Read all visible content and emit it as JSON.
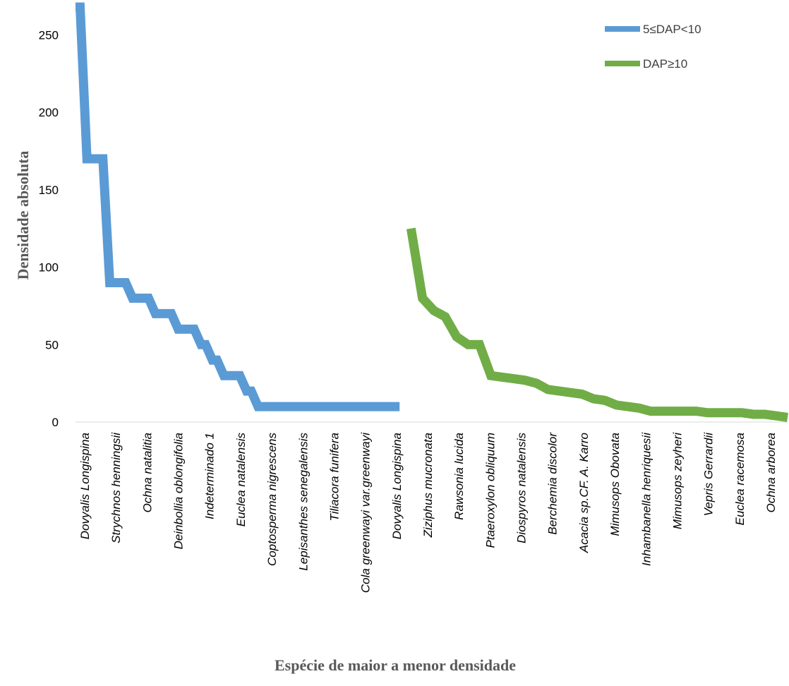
{
  "chart_data": {
    "type": "line",
    "xlabel": "Espécie de maior a menor densidade",
    "ylabel": "Densidade absoluta",
    "ylim": [
      0,
      268
    ],
    "yticks": [
      0,
      50,
      100,
      150,
      200,
      250
    ],
    "legend_position": "top-right",
    "tick_labels": [
      "Dovyalis Longispina",
      "Strychnos henningsii",
      "Ochna natalitia",
      "Deinbollia oblongifolia",
      "Indeterminado 1",
      "Euclea natalensis",
      "Coptosperma  nigrescens",
      "Lepisanthes senegalensis",
      "Tiliacora funifera",
      "Cola greenwayi var.greenwayi",
      "Dovyalis Longispina",
      "Ziziphus mucronata",
      "Rawsonia lucida",
      "Ptaeroxylon obliquum",
      "Diospyros natalensis",
      "Berchemia discolor",
      "Acacia sp.CF. A. Karro",
      "Mimusops Obovata",
      "Inhambanella henriquesii",
      "Mimusops zeyheri",
      "Vepris Gerrardii",
      "Euclea racemosa",
      "Ochna arborea"
    ],
    "series": [
      {
        "name": "5≤DAP<10",
        "color": "#5B9BD5",
        "x": [
          0,
          0.4,
          1,
          1.4,
          2,
          2.4,
          3,
          3.4,
          4,
          4.4,
          5,
          5.4,
          6,
          6.4,
          7,
          7.4,
          8,
          8.4,
          9,
          9.4,
          10,
          10.4,
          11,
          11.4,
          12,
          12.4,
          13,
          13.4,
          14,
          14.4,
          15,
          15.4,
          16,
          16.4,
          17,
          17.4,
          18,
          18.4,
          19,
          19.4,
          20,
          20.4,
          21,
          21.4,
          22,
          22.4,
          23,
          23.4,
          24,
          24.4,
          25,
          25.4,
          26,
          26.4,
          27,
          27.4,
          28,
          28.4
        ],
        "y": [
          268,
          268,
          170,
          170,
          170,
          170,
          90,
          90,
          90,
          90,
          80,
          80,
          80,
          80,
          70,
          70,
          70,
          70,
          60,
          60,
          60,
          60,
          50,
          50,
          40,
          40,
          30,
          30,
          30,
          30,
          20,
          20,
          10,
          10,
          10,
          10,
          10,
          10,
          10,
          10,
          10,
          10,
          10,
          10,
          10,
          10,
          10,
          10,
          10,
          10,
          10,
          10,
          10,
          10,
          10,
          10,
          10,
          10
        ]
      },
      {
        "name": "DAP≥10",
        "color": "#70AD47",
        "x": [
          29.4,
          30.4,
          31.4,
          32.4,
          33.4,
          34.4,
          35.4,
          36.4,
          37.4,
          38.4,
          39.4,
          40.4,
          41.4,
          42.4,
          43.4,
          44.4,
          45.4,
          46.4,
          47.4,
          48.4,
          49.4,
          50.4,
          51.4,
          52.4,
          53.4,
          54.4,
          55.4,
          56.4,
          57.4,
          58.4,
          59.4,
          60.4,
          61.4,
          62.4
        ],
        "y": [
          125,
          80,
          72,
          68,
          55,
          50,
          50,
          30,
          29,
          28,
          27,
          25,
          21,
          20,
          19,
          18,
          15,
          14,
          11,
          10,
          9,
          7,
          7,
          7,
          7,
          7,
          6,
          6,
          6,
          6,
          5,
          5,
          4,
          3
        ]
      }
    ]
  }
}
